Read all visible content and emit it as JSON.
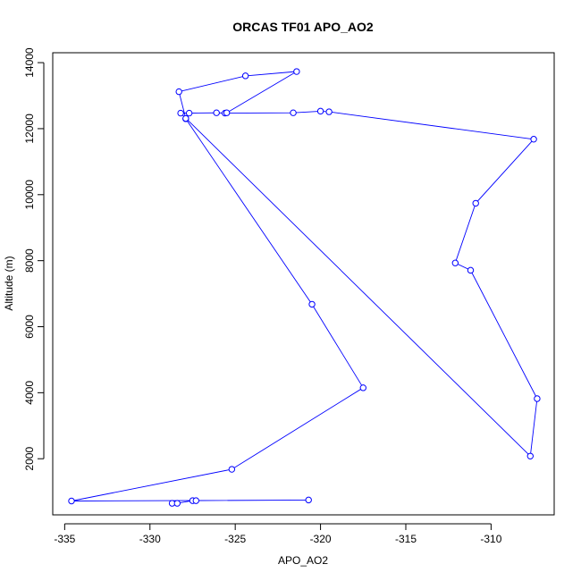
{
  "chart_data": {
    "type": "line",
    "title": "ORCAS TF01 APO_AO2",
    "xlabel": "APO_AO2",
    "ylabel": "Altitude (m)",
    "xlim": [
      -335.7,
      -306.3
    ],
    "ylim": [
      300,
      14300
    ],
    "xticks": [
      -335,
      -330,
      -325,
      -320,
      -315,
      -310
    ],
    "yticks": [
      2000,
      4000,
      6000,
      8000,
      10000,
      12000,
      14000
    ],
    "grid": false,
    "legend": "none",
    "markers": "open-circle",
    "colors": {
      "series": "#0000ff",
      "axes": "#000000"
    },
    "series": [
      {
        "points": [
          [
            -328.7,
            650
          ],
          [
            -328.4,
            650
          ],
          [
            -327.5,
            730
          ],
          [
            -327.3,
            730
          ],
          [
            -320.7,
            750
          ],
          [
            -334.6,
            720
          ],
          [
            -325.2,
            1680
          ],
          [
            -317.5,
            4150
          ],
          [
            -320.5,
            6680
          ],
          [
            -327.9,
            12300
          ],
          [
            -327.7,
            12470
          ],
          [
            -326.1,
            12480
          ],
          [
            -325.6,
            12470
          ],
          [
            -321.6,
            12480
          ],
          [
            -320.0,
            12530
          ],
          [
            -319.5,
            12510
          ],
          [
            -307.5,
            11680
          ],
          [
            -310.9,
            9740
          ],
          [
            -312.1,
            7930
          ],
          [
            -311.2,
            7710
          ],
          [
            -307.3,
            3820
          ],
          [
            -307.7,
            2080
          ],
          [
            -328.2,
            12470
          ],
          [
            -325.5,
            12480
          ],
          [
            -321.4,
            13730
          ],
          [
            -324.4,
            13600
          ],
          [
            -328.3,
            13120
          ],
          [
            -327.9,
            12310
          ]
        ]
      }
    ]
  }
}
